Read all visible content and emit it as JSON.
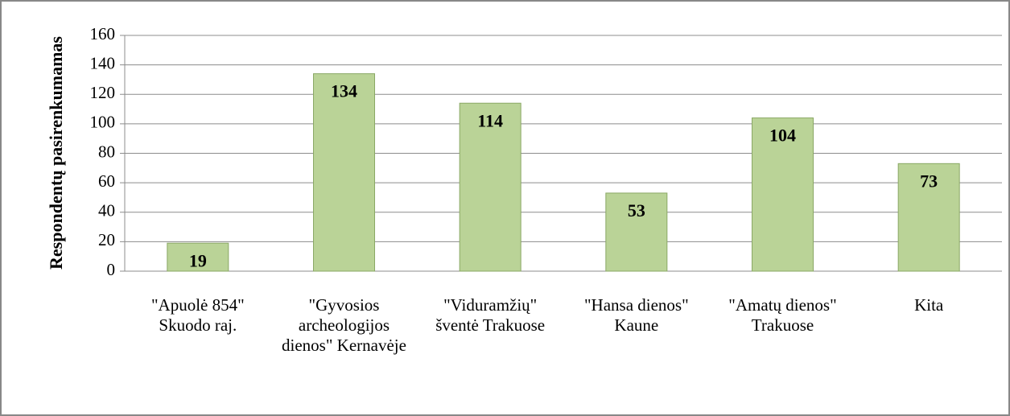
{
  "chart_data": {
    "type": "bar",
    "y_label": "Respondentų pasirenkumamas",
    "categories": [
      "\"Apuolė 854\" Skuodo raj.",
      "\"Gyvosios archeologijos dienos\" Kernavėje",
      "\"Viduramžių\" šventė Trakuose",
      "\"Hansa dienos\" Kaune",
      "\"Amatų dienos\" Trakuose",
      "Kita"
    ],
    "values": [
      19,
      134,
      114,
      53,
      104,
      73
    ],
    "color": "#bad397",
    "ylim": [
      0,
      160
    ],
    "yticks": [
      0,
      20,
      40,
      60,
      80,
      100,
      120,
      140,
      160
    ],
    "grid": true
  }
}
